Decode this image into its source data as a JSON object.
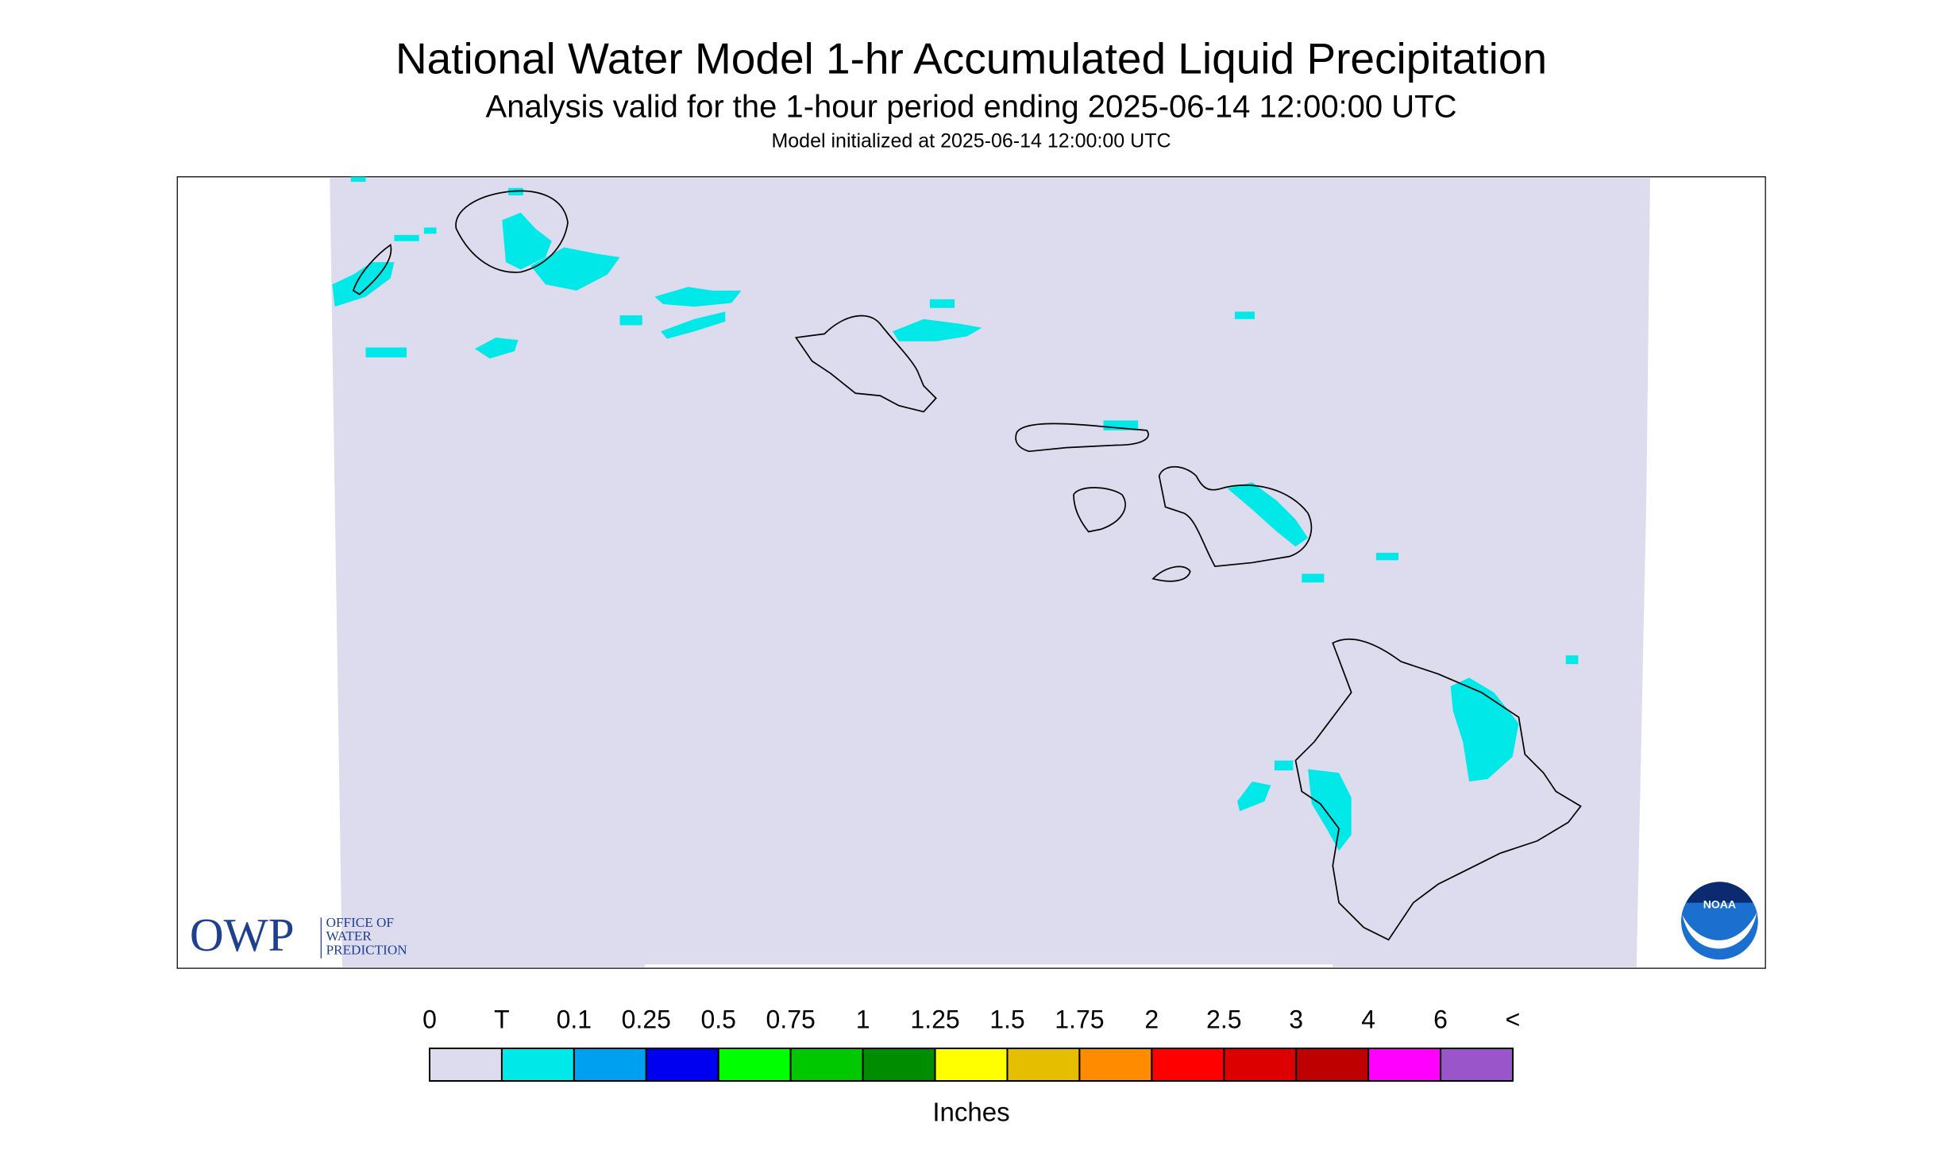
{
  "header": {
    "title": "National Water Model 1-hr Accumulated Liquid Precipitation",
    "subtitle": "Analysis valid for the 1-hour period ending 2025-06-14 12:00:00 UTC",
    "initialized": "Model initialized at 2025-06-14 12:00:00 UTC"
  },
  "legend": {
    "labels": [
      "0",
      "T",
      "0.1",
      "0.25",
      "0.5",
      "0.75",
      "1",
      "1.25",
      "1.5",
      "1.75",
      "2",
      "2.5",
      "3",
      "4",
      "6",
      "<"
    ],
    "colors": [
      "#dcdcee",
      "#00e8e8",
      "#00a0f0",
      "#0000f0",
      "#00ff00",
      "#00c800",
      "#008c00",
      "#ffff00",
      "#e6be00",
      "#ff8c00",
      "#ff0000",
      "#dc0000",
      "#be0000",
      "#ff00ff",
      "#9955c9"
    ],
    "unit": "Inches"
  },
  "logos": {
    "owp": "OWP",
    "owp_name": [
      "OFFICE OF",
      "WATER",
      "PREDICTION"
    ],
    "noaa": "NOAA"
  }
}
